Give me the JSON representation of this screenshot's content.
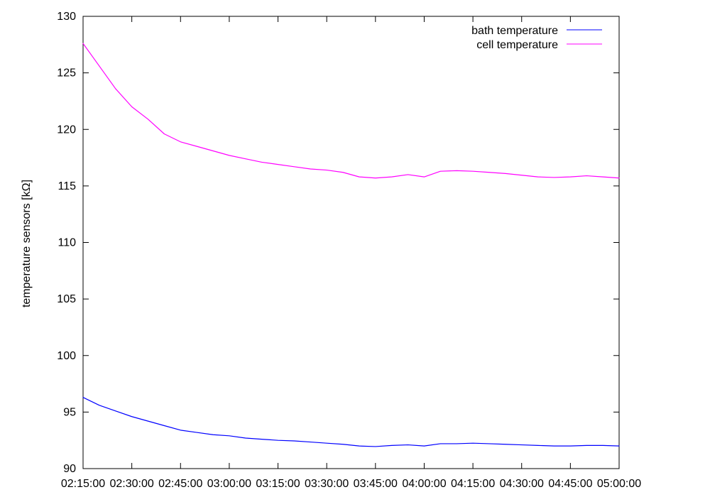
{
  "chart_data": {
    "type": "line",
    "xlabel": "",
    "ylabel": "temperature sensors [kΩ]",
    "ylim": [
      90,
      130
    ],
    "y_ticks": [
      90,
      95,
      100,
      105,
      110,
      115,
      120,
      125,
      130
    ],
    "x_tick_labels": [
      "02:15:00",
      "02:30:00",
      "02:45:00",
      "03:00:00",
      "03:15:00",
      "03:30:00",
      "03:45:00",
      "04:00:00",
      "04:15:00",
      "04:30:00",
      "04:45:00",
      "05:00:00"
    ],
    "x_time_range": [
      "02:15:00",
      "05:00:00"
    ],
    "grid": false,
    "legend_position": "top-right",
    "series": [
      {
        "name": "bath temperature",
        "color": "#0000ff",
        "points": [
          [
            "02:15:00",
            96.3
          ],
          [
            "02:20:00",
            95.6
          ],
          [
            "02:25:00",
            95.1
          ],
          [
            "02:30:00",
            94.6
          ],
          [
            "02:35:00",
            94.2
          ],
          [
            "02:40:00",
            93.8
          ],
          [
            "02:45:00",
            93.4
          ],
          [
            "02:50:00",
            93.2
          ],
          [
            "02:55:00",
            93.0
          ],
          [
            "03:00:00",
            92.9
          ],
          [
            "03:05:00",
            92.7
          ],
          [
            "03:10:00",
            92.6
          ],
          [
            "03:15:00",
            92.5
          ],
          [
            "03:20:00",
            92.45
          ],
          [
            "03:25:00",
            92.35
          ],
          [
            "03:30:00",
            92.25
          ],
          [
            "03:35:00",
            92.15
          ],
          [
            "03:40:00",
            92.0
          ],
          [
            "03:45:00",
            91.95
          ],
          [
            "03:50:00",
            92.05
          ],
          [
            "03:55:00",
            92.1
          ],
          [
            "04:00:00",
            92.0
          ],
          [
            "04:05:00",
            92.2
          ],
          [
            "04:10:00",
            92.2
          ],
          [
            "04:15:00",
            92.25
          ],
          [
            "04:20:00",
            92.2
          ],
          [
            "04:25:00",
            92.15
          ],
          [
            "04:30:00",
            92.1
          ],
          [
            "04:35:00",
            92.05
          ],
          [
            "04:40:00",
            92.0
          ],
          [
            "04:45:00",
            92.0
          ],
          [
            "04:50:00",
            92.05
          ],
          [
            "04:55:00",
            92.05
          ],
          [
            "05:00:00",
            92.0
          ]
        ]
      },
      {
        "name": "cell temperature",
        "color": "#ff00ff",
        "points": [
          [
            "02:15:00",
            127.6
          ],
          [
            "02:20:00",
            125.6
          ],
          [
            "02:25:00",
            123.6
          ],
          [
            "02:30:00",
            122.0
          ],
          [
            "02:35:00",
            120.9
          ],
          [
            "02:40:00",
            119.6
          ],
          [
            "02:45:00",
            118.9
          ],
          [
            "02:50:00",
            118.5
          ],
          [
            "02:55:00",
            118.1
          ],
          [
            "03:00:00",
            117.7
          ],
          [
            "03:05:00",
            117.4
          ],
          [
            "03:10:00",
            117.1
          ],
          [
            "03:15:00",
            116.9
          ],
          [
            "03:20:00",
            116.7
          ],
          [
            "03:25:00",
            116.5
          ],
          [
            "03:30:00",
            116.4
          ],
          [
            "03:35:00",
            116.2
          ],
          [
            "03:40:00",
            115.8
          ],
          [
            "03:45:00",
            115.7
          ],
          [
            "03:50:00",
            115.8
          ],
          [
            "03:55:00",
            116.0
          ],
          [
            "04:00:00",
            115.8
          ],
          [
            "04:05:00",
            116.3
          ],
          [
            "04:10:00",
            116.35
          ],
          [
            "04:15:00",
            116.3
          ],
          [
            "04:20:00",
            116.2
          ],
          [
            "04:25:00",
            116.1
          ],
          [
            "04:30:00",
            115.95
          ],
          [
            "04:35:00",
            115.8
          ],
          [
            "04:40:00",
            115.75
          ],
          [
            "04:45:00",
            115.8
          ],
          [
            "04:50:00",
            115.9
          ],
          [
            "04:55:00",
            115.8
          ],
          [
            "05:00:00",
            115.7
          ]
        ]
      }
    ]
  }
}
